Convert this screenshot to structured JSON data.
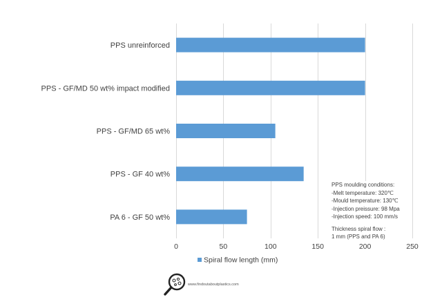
{
  "chart_data": {
    "type": "bar",
    "orientation": "horizontal",
    "categories": [
      "PPS unreinforced",
      "PPS - GF/MD 50 wt% impact modified",
      "PPS - GF/MD 65 wt%",
      "PPS - GF 40 wt%",
      "PA 6 - GF 50 wt%"
    ],
    "series": [
      {
        "name": "Spiral flow length (mm)",
        "values": [
          200,
          200,
          105,
          135,
          75
        ]
      }
    ],
    "xlim": [
      0,
      250
    ],
    "xticks": [
      0,
      50,
      100,
      150,
      200,
      250
    ],
    "grid": true,
    "legend": "bottom",
    "bar_color": "#5b9bd5"
  },
  "notes": {
    "conditions_title": "PPS moulding conditions:",
    "melt_temp": "-Melt temperature: 320℃",
    "mould_temp": "-Mould temperature: 130℃",
    "injection_pressure": "-Injection preissure: 98 Mpa",
    "injection_speed": "-Injection speed: 100 mm/s",
    "thickness_title": "Thickness spiral flow :",
    "thickness_value": "1 mm (PPS and PA 6)"
  },
  "branding": {
    "icon": "magnifier-logo-icon",
    "url": "www.findoutaboutplastics.com"
  }
}
